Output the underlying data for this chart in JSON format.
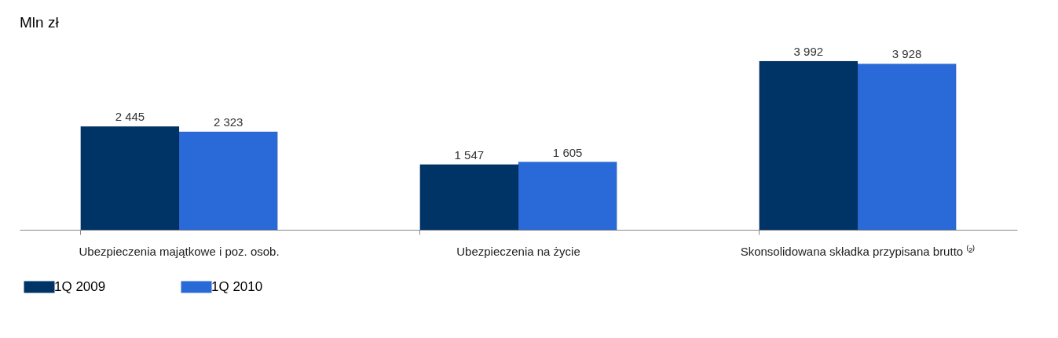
{
  "chart_data": {
    "type": "bar",
    "title": "Mln zł",
    "categories": [
      "Ubezpieczenia majątkowe i poz. osob.",
      "Ubezpieczenia na życie",
      "Skonsolidowana składka przypisana brutto ⁽²⁾"
    ],
    "series": [
      {
        "name": "1Q 2009",
        "color": "#003366",
        "values": [
          2445,
          1547,
          3992
        ],
        "value_labels": [
          "2 445",
          "1 547",
          "3 992"
        ]
      },
      {
        "name": "1Q 2010",
        "color": "#2a6ad8",
        "values": [
          2323,
          1605,
          3928
        ],
        "value_labels": [
          "2 323",
          "1 605",
          "3 928"
        ]
      }
    ],
    "legend": "bottom left",
    "grid": false
  }
}
